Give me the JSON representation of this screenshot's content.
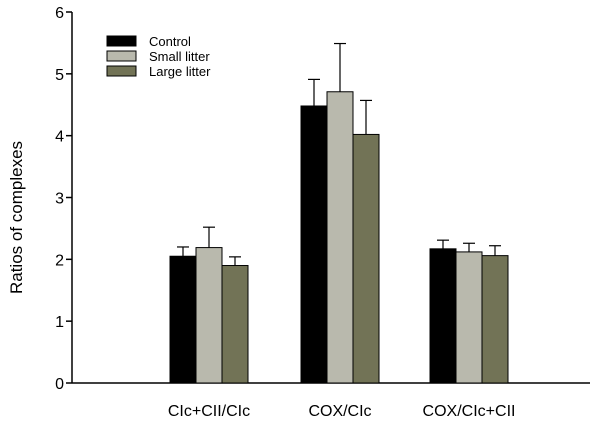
{
  "chart_data": {
    "type": "bar",
    "title": "",
    "xlabel": "",
    "ylabel": "Ratios of complexes",
    "ylim": [
      0,
      6
    ],
    "yticks": [
      0,
      1,
      2,
      3,
      4,
      5,
      6
    ],
    "categories": [
      "CIc+CII/CIc",
      "COX/CIc",
      "COX/CIc+CII"
    ],
    "series": [
      {
        "name": "Control",
        "color": "#000000",
        "values": [
          2.05,
          4.48,
          2.17
        ],
        "errors": [
          0.15,
          0.43,
          0.14
        ]
      },
      {
        "name": "Small litter",
        "color": "#b9b9ad",
        "values": [
          2.19,
          4.71,
          2.12
        ],
        "errors": [
          0.33,
          0.78,
          0.14
        ]
      },
      {
        "name": "Large litter",
        "color": "#727356",
        "values": [
          1.9,
          4.02,
          2.06
        ],
        "errors": [
          0.14,
          0.55,
          0.16
        ]
      }
    ],
    "legend_position": "top-left",
    "grid": false
  }
}
